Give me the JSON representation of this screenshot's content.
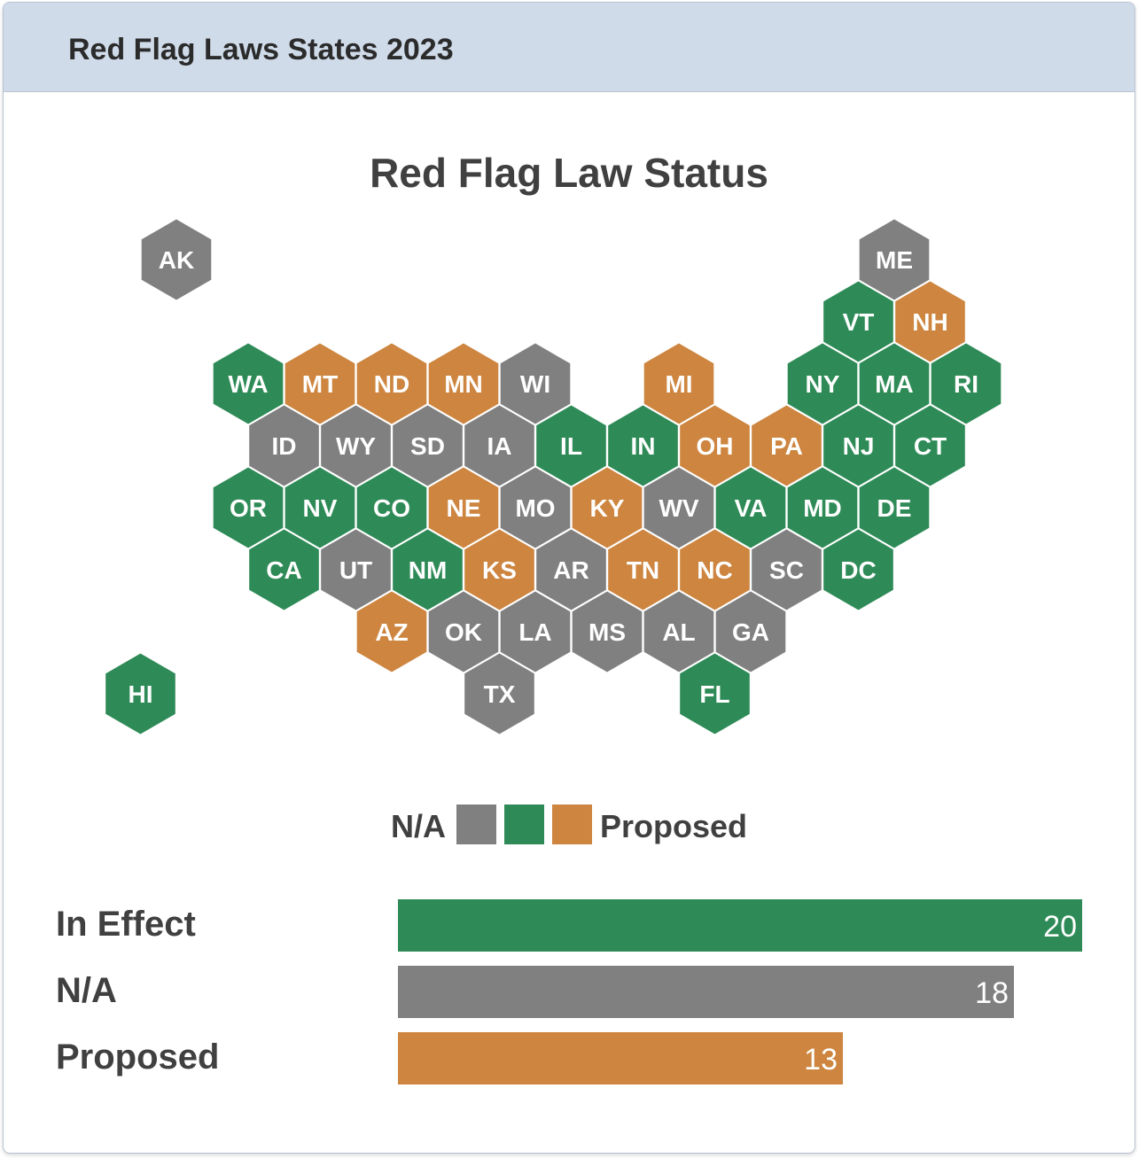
{
  "header": {
    "title": "Red Flag Laws States 2023"
  },
  "map": {
    "title": "Red Flag Law Status",
    "colors": {
      "In Effect": "#2e8b57",
      "N/A": "#808080",
      "Proposed": "#cd853f"
    },
    "states": [
      {
        "abbr": "AK",
        "status": "N/A"
      },
      {
        "abbr": "ME",
        "status": "N/A"
      },
      {
        "abbr": "VT",
        "status": "In Effect"
      },
      {
        "abbr": "NH",
        "status": "Proposed"
      },
      {
        "abbr": "WA",
        "status": "In Effect"
      },
      {
        "abbr": "MT",
        "status": "Proposed"
      },
      {
        "abbr": "ND",
        "status": "Proposed"
      },
      {
        "abbr": "MN",
        "status": "Proposed"
      },
      {
        "abbr": "WI",
        "status": "N/A"
      },
      {
        "abbr": "MI",
        "status": "Proposed"
      },
      {
        "abbr": "NY",
        "status": "In Effect"
      },
      {
        "abbr": "MA",
        "status": "In Effect"
      },
      {
        "abbr": "RI",
        "status": "In Effect"
      },
      {
        "abbr": "ID",
        "status": "N/A"
      },
      {
        "abbr": "WY",
        "status": "N/A"
      },
      {
        "abbr": "SD",
        "status": "N/A"
      },
      {
        "abbr": "IA",
        "status": "N/A"
      },
      {
        "abbr": "IL",
        "status": "In Effect"
      },
      {
        "abbr": "IN",
        "status": "In Effect"
      },
      {
        "abbr": "OH",
        "status": "Proposed"
      },
      {
        "abbr": "PA",
        "status": "Proposed"
      },
      {
        "abbr": "NJ",
        "status": "In Effect"
      },
      {
        "abbr": "CT",
        "status": "In Effect"
      },
      {
        "abbr": "OR",
        "status": "In Effect"
      },
      {
        "abbr": "NV",
        "status": "In Effect"
      },
      {
        "abbr": "CO",
        "status": "In Effect"
      },
      {
        "abbr": "NE",
        "status": "Proposed"
      },
      {
        "abbr": "MO",
        "status": "N/A"
      },
      {
        "abbr": "KY",
        "status": "Proposed"
      },
      {
        "abbr": "WV",
        "status": "N/A"
      },
      {
        "abbr": "VA",
        "status": "In Effect"
      },
      {
        "abbr": "MD",
        "status": "In Effect"
      },
      {
        "abbr": "DE",
        "status": "In Effect"
      },
      {
        "abbr": "CA",
        "status": "In Effect"
      },
      {
        "abbr": "UT",
        "status": "N/A"
      },
      {
        "abbr": "NM",
        "status": "In Effect"
      },
      {
        "abbr": "KS",
        "status": "Proposed"
      },
      {
        "abbr": "AR",
        "status": "N/A"
      },
      {
        "abbr": "TN",
        "status": "Proposed"
      },
      {
        "abbr": "NC",
        "status": "Proposed"
      },
      {
        "abbr": "SC",
        "status": "N/A"
      },
      {
        "abbr": "DC",
        "status": "In Effect"
      },
      {
        "abbr": "AZ",
        "status": "Proposed"
      },
      {
        "abbr": "OK",
        "status": "N/A"
      },
      {
        "abbr": "LA",
        "status": "N/A"
      },
      {
        "abbr": "MS",
        "status": "N/A"
      },
      {
        "abbr": "AL",
        "status": "N/A"
      },
      {
        "abbr": "GA",
        "status": "N/A"
      },
      {
        "abbr": "HI",
        "status": "In Effect"
      },
      {
        "abbr": "TX",
        "status": "N/A"
      },
      {
        "abbr": "FL",
        "status": "In Effect"
      }
    ]
  },
  "legend": {
    "left_label": "N/A",
    "right_label": "Proposed"
  },
  "chart_data": {
    "type": "bar",
    "categories": [
      "In Effect",
      "N/A",
      "Proposed"
    ],
    "values": [
      20,
      18,
      13
    ],
    "xlim": [
      0,
      20
    ]
  }
}
